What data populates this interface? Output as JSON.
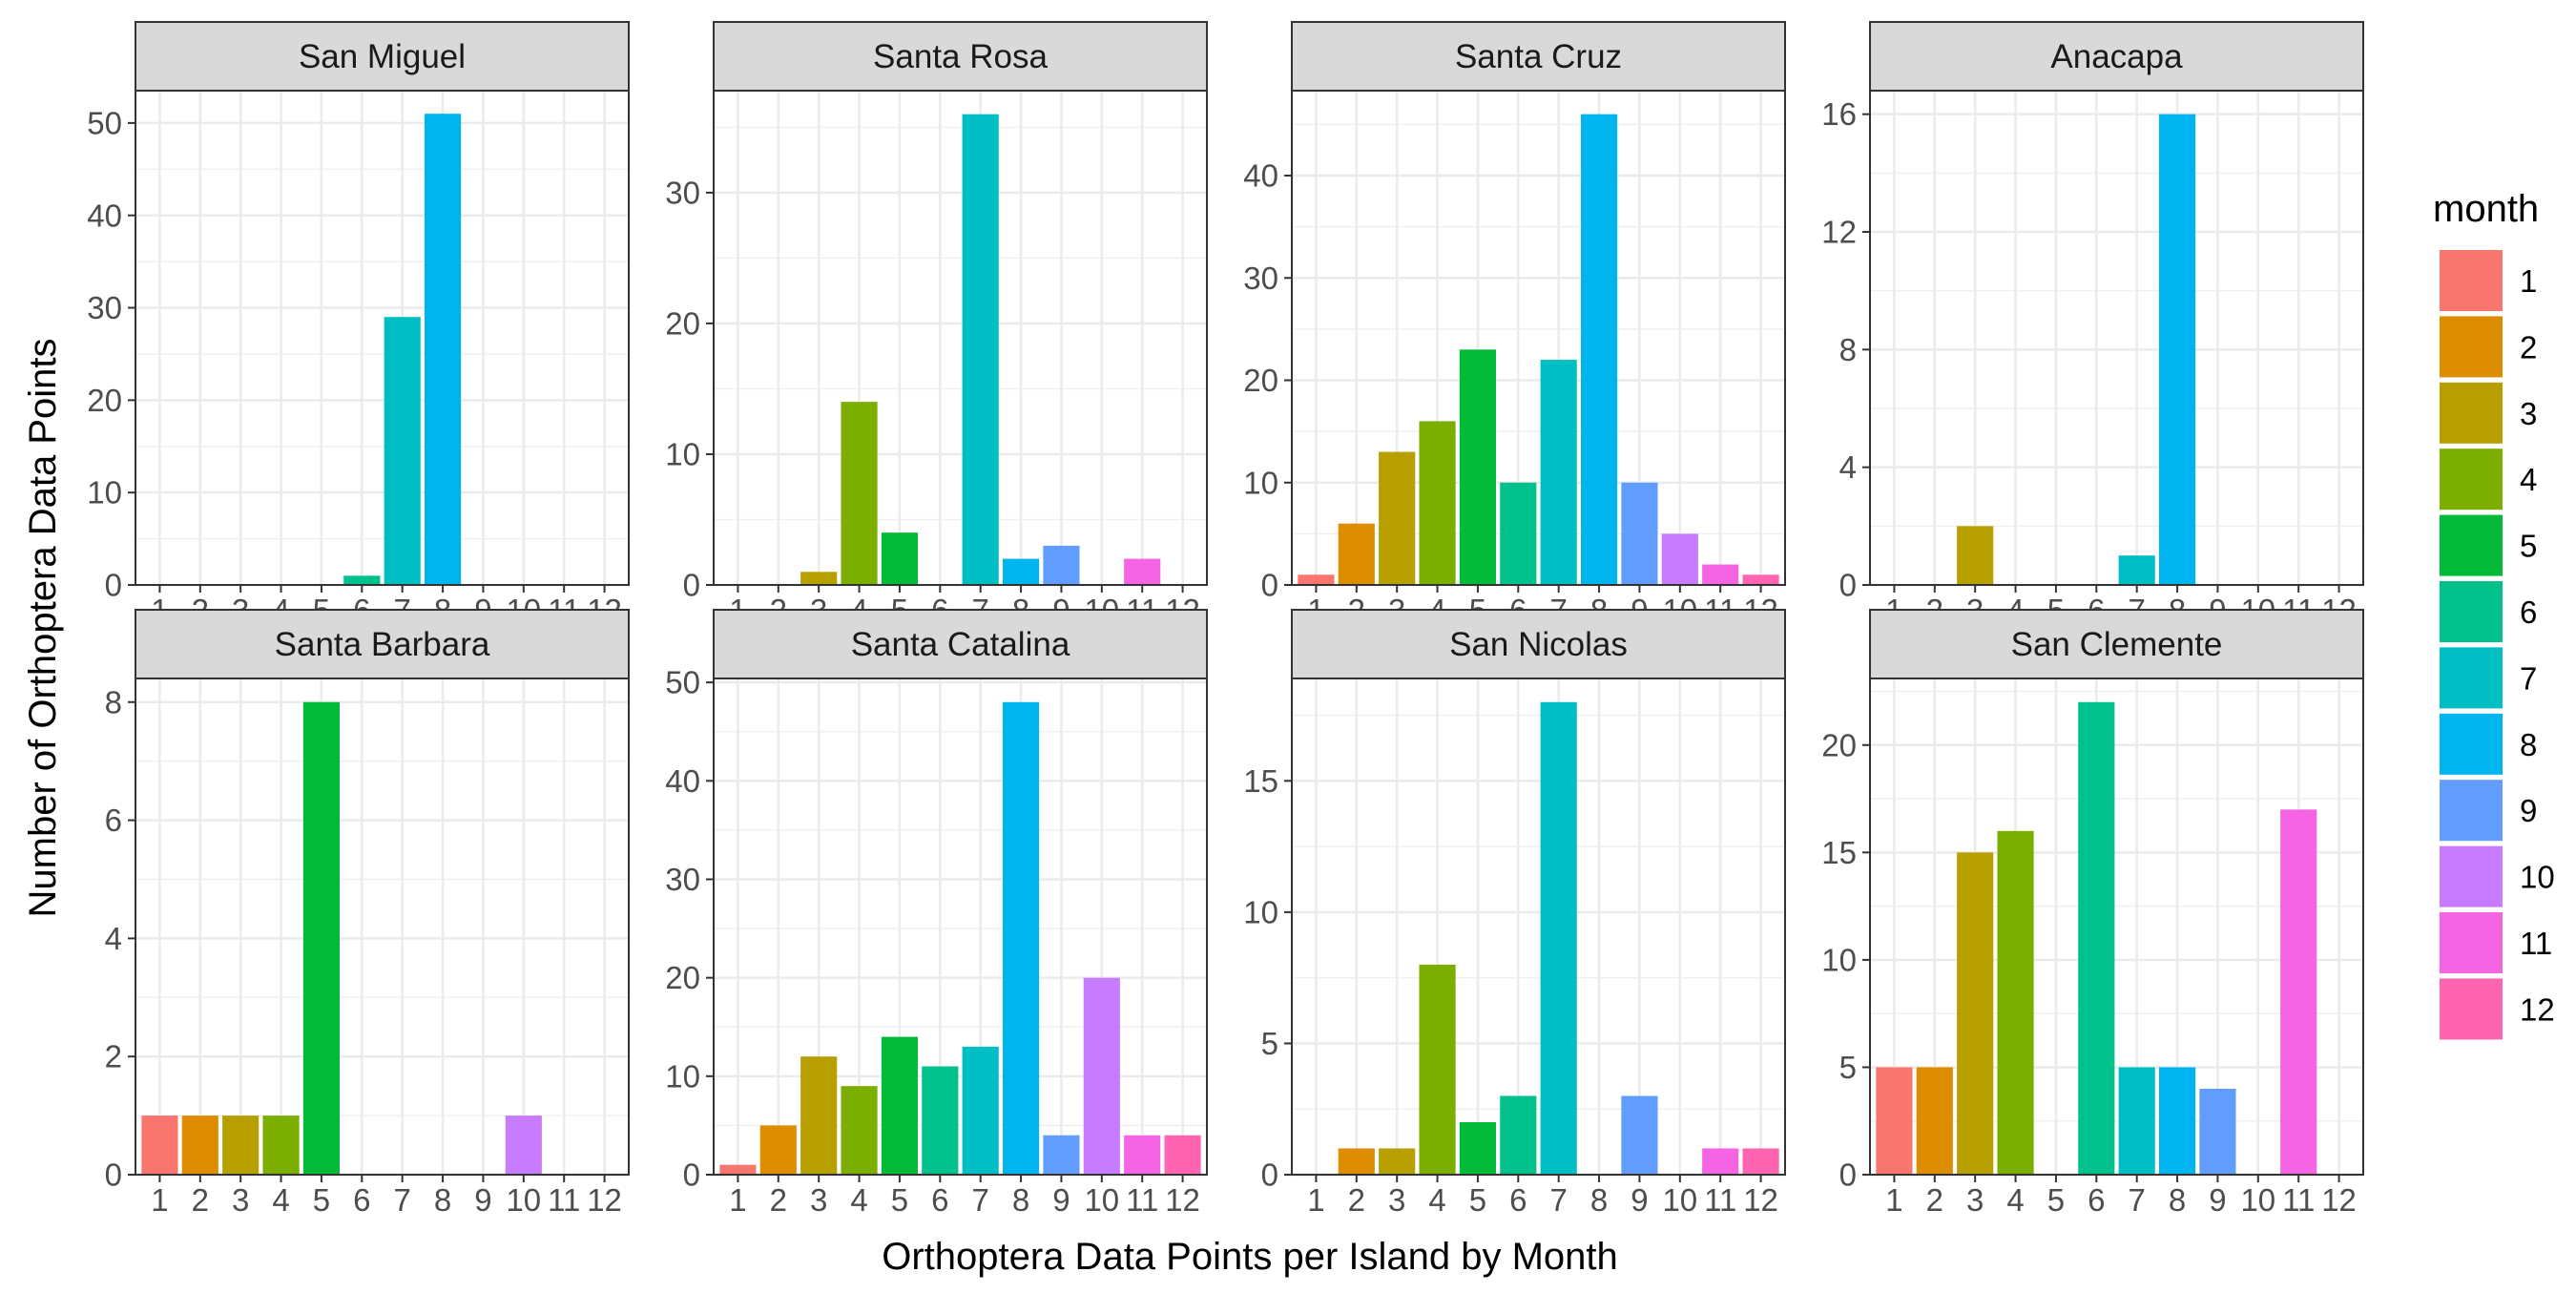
{
  "chart_data": {
    "type": "bar",
    "xlabel": "Orthoptera Data Points per Island by Month",
    "ylabel": "Number of Orthoptera Data Points",
    "categories": [
      1,
      2,
      3,
      4,
      5,
      6,
      7,
      8,
      9,
      10,
      11,
      12
    ],
    "scales": "free_y",
    "grid": true,
    "legend": {
      "title": "month",
      "position": "right",
      "entries": [
        "1",
        "2",
        "3",
        "4",
        "5",
        "6",
        "7",
        "8",
        "9",
        "10",
        "11",
        "12"
      ]
    },
    "colors": [
      "#F8766D",
      "#DE8C00",
      "#B79F00",
      "#7CAE00",
      "#00BA38",
      "#00C08B",
      "#00BFC4",
      "#00B4F0",
      "#619CFF",
      "#C77CFF",
      "#F564E3",
      "#FF64B0"
    ],
    "panels": [
      {
        "title": "San Miguel",
        "ylim": [
          0,
          53.5
        ],
        "yticks": [
          0,
          10,
          20,
          30,
          40,
          50
        ],
        "values": [
          0,
          0,
          0,
          0,
          0,
          1,
          29,
          51,
          0,
          0,
          0,
          0
        ]
      },
      {
        "title": "Santa Rosa",
        "ylim": [
          0,
          37.8
        ],
        "yticks": [
          0,
          10,
          20,
          30
        ],
        "values": [
          0,
          0,
          1,
          14,
          4,
          0,
          36,
          2,
          3,
          0,
          2,
          0
        ]
      },
      {
        "title": "Santa Cruz",
        "ylim": [
          0,
          48.3
        ],
        "yticks": [
          0,
          10,
          20,
          30,
          40
        ],
        "values": [
          1,
          6,
          13,
          16,
          23,
          10,
          22,
          46,
          10,
          5,
          2,
          1
        ]
      },
      {
        "title": "Anacapa",
        "ylim": [
          0,
          16.8
        ],
        "yticks": [
          0,
          4,
          8,
          12,
          16
        ],
        "values": [
          0,
          0,
          2,
          0,
          0,
          0,
          1,
          16,
          0,
          0,
          0,
          0
        ]
      },
      {
        "title": "Santa Barbara",
        "ylim": [
          0,
          8.4
        ],
        "yticks": [
          0,
          2,
          4,
          6,
          8
        ],
        "values": [
          1,
          1,
          1,
          1,
          8,
          0,
          0,
          0,
          0,
          1,
          0,
          0
        ]
      },
      {
        "title": "Santa Catalina",
        "ylim": [
          0,
          50.4
        ],
        "yticks": [
          0,
          10,
          20,
          30,
          40,
          50
        ],
        "values": [
          1,
          5,
          12,
          9,
          14,
          11,
          13,
          48,
          4,
          20,
          4,
          4
        ]
      },
      {
        "title": "San Nicolas",
        "ylim": [
          0,
          18.9
        ],
        "yticks": [
          0,
          5,
          10,
          15
        ],
        "values": [
          0,
          1,
          1,
          8,
          2,
          3,
          18,
          0,
          3,
          0,
          1,
          1
        ]
      },
      {
        "title": "San Clemente",
        "ylim": [
          0,
          23.1
        ],
        "yticks": [
          0,
          5,
          10,
          15,
          20
        ],
        "values": [
          5,
          5,
          15,
          16,
          0,
          22,
          5,
          5,
          4,
          0,
          17,
          0
        ]
      }
    ]
  }
}
